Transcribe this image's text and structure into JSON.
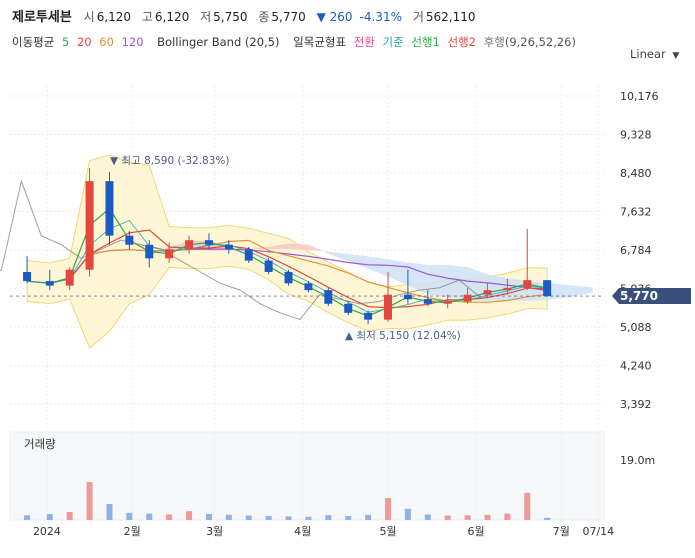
{
  "header": {
    "name": "제로투세븐",
    "open_label": "시",
    "open": "6,120",
    "high_label": "고",
    "high": "6,120",
    "low_label": "저",
    "low": "5,750",
    "close_label": "종",
    "close": "5,770",
    "change": "▼ 260",
    "change_pct": "-4.31%",
    "volume_label": "거",
    "volume": "562,110"
  },
  "indicators": {
    "ma_label": "이동평균",
    "ma5": "5",
    "ma20": "20",
    "ma60": "60",
    "ma120": "120",
    "bollinger": "Bollinger Band (20,5)",
    "ichimoku": "일목균형표",
    "tenkan": "전환",
    "kijun": "기준",
    "span1": "선행1",
    "span2": "선행2",
    "lagging": "후행",
    "ichimoku_params": "(9,26,52,26)",
    "colors": {
      "ma5": "#2eaa4a",
      "ma20": "#e2483d",
      "ma60": "#e5923a",
      "ma120": "#9b5bd6",
      "tenkan": "#e84a8b",
      "kijun": "#22a7b7",
      "span1": "#2eaa4a",
      "span2": "#e2483d",
      "lagging": "#777777"
    }
  },
  "scale_mode": "Linear",
  "price_axis_ticks": [
    "10,176",
    "9,328",
    "8,480",
    "7,632",
    "6,784",
    "5,936",
    "5,088",
    "4,240",
    "3,392"
  ],
  "current_price_badge": "5,770",
  "annotations": {
    "high": "▼ 최고 8,590 (-32.83%)",
    "low": "▲ 최저 5,150 (12.04%)"
  },
  "volume_panel": {
    "title": "거래량",
    "axis_tick": "19.0m"
  },
  "x_axis_ticks": [
    "2024",
    "2월",
    "3월",
    "4월",
    "5월",
    "6월",
    "7월",
    "07/14"
  ],
  "chart_data": {
    "type": "candlestick",
    "x": [
      "2023-12-26",
      "2024-01-03",
      "2024-01-10",
      "2024-01-17",
      "2024-01-24",
      "2024-01-31",
      "2024-02-07",
      "2024-02-14",
      "2024-02-21",
      "2024-02-28",
      "2024-03-06",
      "2024-03-13",
      "2024-03-20",
      "2024-03-27",
      "2024-04-03",
      "2024-04-10",
      "2024-04-17",
      "2024-04-24",
      "2024-05-01",
      "2024-05-08",
      "2024-05-15",
      "2024-05-22",
      "2024-05-29",
      "2024-06-05",
      "2024-06-12",
      "2024-06-19",
      "2024-06-26"
    ],
    "open": [
      6300,
      6100,
      6000,
      6350,
      8300,
      7100,
      6900,
      6600,
      6800,
      7000,
      6900,
      6800,
      6550,
      6300,
      6050,
      5900,
      5600,
      5400,
      5250,
      5800,
      5700,
      5600,
      5650,
      5800,
      5900,
      5950,
      6120
    ],
    "high": [
      6650,
      6350,
      6400,
      8590,
      8500,
      7200,
      7000,
      6950,
      7100,
      7150,
      7000,
      6850,
      6600,
      6350,
      6100,
      5950,
      5650,
      5450,
      6300,
      6350,
      5900,
      5800,
      5950,
      6050,
      6150,
      7250,
      6120
    ],
    "low": [
      6050,
      5900,
      5900,
      6200,
      6900,
      6800,
      6400,
      6500,
      6700,
      6800,
      6700,
      6500,
      6250,
      6000,
      5850,
      5550,
      5350,
      5150,
      5200,
      5600,
      5550,
      5500,
      5600,
      5750,
      5800,
      5900,
      5750
    ],
    "close": [
      6100,
      6000,
      6350,
      8300,
      7100,
      6900,
      6600,
      6800,
      7000,
      6900,
      6800,
      6550,
      6300,
      6050,
      5900,
      5600,
      5400,
      5250,
      5800,
      5700,
      5600,
      5650,
      5800,
      5900,
      5950,
      6120,
      5770
    ],
    "volume_m": [
      1.2,
      1.5,
      2.0,
      9.5,
      4.0,
      1.8,
      1.6,
      1.4,
      2.2,
      1.5,
      1.3,
      1.1,
      1.0,
      0.9,
      0.8,
      1.2,
      1.0,
      1.3,
      5.5,
      2.8,
      1.4,
      1.1,
      1.2,
      1.3,
      1.6,
      6.8,
      0.56
    ],
    "ylim": [
      3392,
      10176
    ],
    "volume_ylim": [
      0,
      22
    ],
    "legend_position": "top-left"
  }
}
